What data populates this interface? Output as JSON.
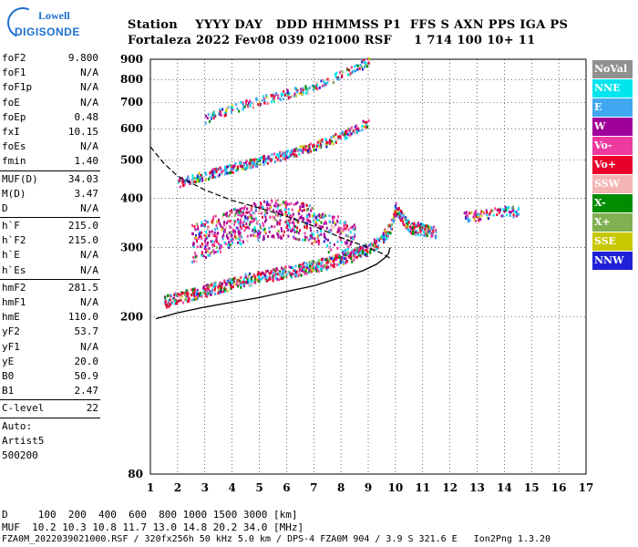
{
  "logo": {
    "line1": "Lowell",
    "line2": "DIGISONDE"
  },
  "header": {
    "line1": "Station    YYYY DAY   DDD HHMMSS P1  FFS S AXN PPS IGA PS",
    "line2": "Fortaleza 2022 Fev08 039 021000 RSF     1 714 100 10+ 11"
  },
  "params": {
    "group1": [
      [
        "foF2",
        "9.800"
      ],
      [
        "foF1",
        "N/A"
      ],
      [
        "foF1p",
        "N/A"
      ],
      [
        "foE",
        "N/A"
      ],
      [
        "foEp",
        "0.48"
      ],
      [
        "fxI",
        "10.15"
      ],
      [
        "foEs",
        "N/A"
      ],
      [
        "fmin",
        "1.40"
      ]
    ],
    "group2": [
      [
        "MUF(D)",
        "34.03"
      ],
      [
        "M(D)",
        "3.47"
      ],
      [
        "D",
        "N/A"
      ]
    ],
    "group3": [
      [
        "h`F",
        "215.0"
      ],
      [
        "h`F2",
        "215.0"
      ],
      [
        "h`E",
        "N/A"
      ],
      [
        "h`Es",
        "N/A"
      ]
    ],
    "group4": [
      [
        "hmF2",
        "281.5"
      ],
      [
        "hmF1",
        "N/A"
      ],
      [
        "hmE",
        "110.0"
      ],
      [
        "yF2",
        "53.7"
      ],
      [
        "yF1",
        "N/A"
      ],
      [
        "yE",
        "20.0"
      ],
      [
        "B0",
        "50.9"
      ],
      [
        "B1",
        "2.47"
      ]
    ],
    "clevel": [
      "C-level",
      "22"
    ],
    "auto": [
      "Auto:",
      "Artist5",
      "500200"
    ]
  },
  "footer": {
    "line1": "D     100  200  400  600  800 1000 1500 3000 [km]",
    "line2": "MUF  10.2 10.3 10.8 11.7 13.0 14.8 20.2 34.0 [MHz]",
    "line3": "FZA0M_2022039021000.RSF / 320fx256h 50 kHz 5.0 km / DPS-4 FZA0M 904 / 3.9 S 321.6 E   Ion2Png 1.3.20"
  },
  "legend": [
    {
      "label": "NoVal",
      "color": "#909090"
    },
    {
      "label": "NNE",
      "color": "#00e5ee"
    },
    {
      "label": "E",
      "color": "#40a8f0"
    },
    {
      "label": "W",
      "color": "#a0009a"
    },
    {
      "label": "Vo-",
      "color": "#ee3aa0"
    },
    {
      "label": "Vo+",
      "color": "#e8002a"
    },
    {
      "label": "SSW",
      "color": "#f5b4b4"
    },
    {
      "label": "X-",
      "color": "#008c00"
    },
    {
      "label": "X+",
      "color": "#80b050"
    },
    {
      "label": "SSE",
      "color": "#c8c800"
    },
    {
      "label": "NNW",
      "color": "#2020d8"
    }
  ],
  "chart_data": {
    "type": "scatter",
    "xlim": [
      1,
      17
    ],
    "ylim": [
      80,
      900
    ],
    "yscale": "log",
    "xticks": [
      "1",
      "2",
      "3",
      "4",
      "5",
      "6",
      "7",
      "8",
      "9",
      "10",
      "11",
      "12",
      "13",
      "14",
      "15",
      "16",
      "17"
    ],
    "yticks": [
      {
        "v": 80,
        "l": "80"
      },
      {
        "v": 200,
        "l": "200"
      },
      {
        "v": 300,
        "l": "300"
      },
      {
        "v": 400,
        "l": "400"
      },
      {
        "v": 500,
        "l": "500"
      },
      {
        "v": 600,
        "l": "600"
      },
      {
        "v": 700,
        "l": "700"
      },
      {
        "v": 800,
        "l": "800"
      },
      {
        "v": 900,
        "l": "900"
      }
    ],
    "grid": true,
    "trace_1hop": [
      [
        1.5,
        220
      ],
      [
        2.5,
        230
      ],
      [
        3.5,
        240
      ],
      [
        4.5,
        250
      ],
      [
        5.5,
        258
      ],
      [
        6.5,
        266
      ],
      [
        7.5,
        276
      ],
      [
        8.5,
        290
      ],
      [
        9.0,
        300
      ],
      [
        9.5,
        318
      ],
      [
        9.8,
        340
      ],
      [
        10.0,
        380
      ],
      [
        10.2,
        360
      ],
      [
        10.5,
        340
      ],
      [
        11.0,
        335
      ],
      [
        11.5,
        330
      ]
    ],
    "trace_2hop": [
      [
        2.0,
        440
      ],
      [
        3.0,
        460
      ],
      [
        4.0,
        480
      ],
      [
        5.0,
        500
      ],
      [
        6.0,
        520
      ],
      [
        7.0,
        545
      ],
      [
        7.5,
        560
      ],
      [
        8.0,
        580
      ],
      [
        8.5,
        600
      ],
      [
        9.0,
        630
      ]
    ],
    "trace_3hop": [
      [
        3.0,
        640
      ],
      [
        4.0,
        680
      ],
      [
        5.0,
        710
      ],
      [
        6.0,
        740
      ],
      [
        7.0,
        770
      ],
      [
        7.5,
        800
      ],
      [
        8.0,
        830
      ],
      [
        8.5,
        860
      ],
      [
        9.0,
        890
      ]
    ],
    "scatter_blob": [
      [
        2.5,
        310
      ],
      [
        3.5,
        330
      ],
      [
        4.5,
        350
      ],
      [
        5.5,
        360
      ],
      [
        6.5,
        355
      ],
      [
        7.0,
        345
      ],
      [
        7.5,
        330
      ],
      [
        8.5,
        320
      ]
    ],
    "cluster_far": [
      [
        12.5,
        360
      ],
      [
        13.2,
        365
      ],
      [
        13.8,
        375
      ],
      [
        14.5,
        370
      ]
    ],
    "profile_solid": [
      [
        1.2,
        198
      ],
      [
        2,
        205
      ],
      [
        3,
        212
      ],
      [
        4,
        218
      ],
      [
        5,
        224
      ],
      [
        6,
        232
      ],
      [
        7,
        240
      ],
      [
        8,
        252
      ],
      [
        8.8,
        262
      ],
      [
        9.3,
        272
      ],
      [
        9.6,
        282
      ],
      [
        9.75,
        290
      ],
      [
        9.8,
        300
      ]
    ],
    "profile_dashed": [
      [
        1.0,
        540
      ],
      [
        1.5,
        490
      ],
      [
        2,
        455
      ],
      [
        3,
        420
      ],
      [
        4,
        395
      ],
      [
        5,
        378
      ],
      [
        6,
        360
      ],
      [
        7,
        340
      ],
      [
        8,
        318
      ],
      [
        9,
        300
      ],
      [
        9.5,
        290
      ],
      [
        9.8,
        282
      ]
    ]
  }
}
